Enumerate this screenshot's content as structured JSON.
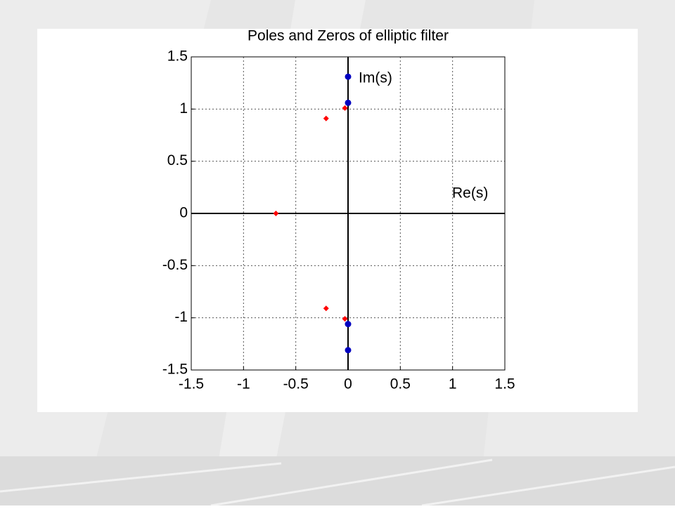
{
  "chart_data": {
    "type": "scatter",
    "title": "Poles and Zeros of elliptic filter",
    "annotations": [
      "Im(s)",
      "Re(s)"
    ],
    "series": [
      {
        "color": "#ff0000",
        "marker": "diamond",
        "x": [
          -0.69,
          -0.21,
          -0.21,
          -0.03,
          -0.03
        ],
        "values": [
          0,
          0.91,
          -0.91,
          1.01,
          -1.01
        ]
      },
      {
        "color": "#0000c0",
        "marker": "circle",
        "x": [
          0,
          0,
          0,
          0
        ],
        "values": [
          1.31,
          1.06,
          -1.06,
          -1.31
        ]
      }
    ],
    "xlim": [
      -1.5,
      1.5
    ],
    "xticks": [
      -1.5,
      -1,
      -0.5,
      0,
      0.5,
      1,
      1.5
    ],
    "ylim": [
      -1.5,
      1.5
    ],
    "yticks": [
      -1.5,
      -1,
      -0.5,
      0,
      0.5,
      1,
      1.5
    ],
    "grid": true
  }
}
